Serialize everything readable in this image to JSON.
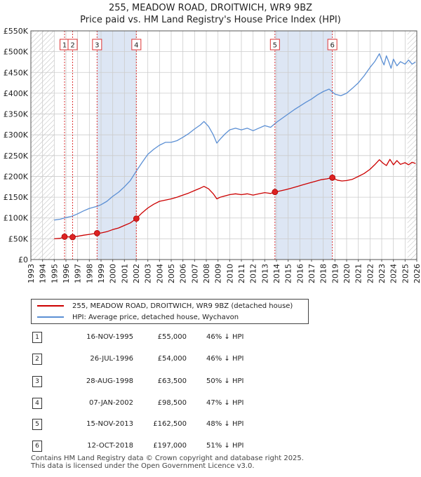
{
  "title": {
    "line1": "255, MEADOW ROAD, DROITWICH, WR9 9BZ",
    "line2": "Price paid vs. HM Land Registry's House Price Index (HPI)"
  },
  "colors": {
    "property": "#cc0000",
    "hpi": "#5b8fd4",
    "band": "#dde6f4",
    "grid": "#cccccc",
    "marker": "#dd2222"
  },
  "chart_data": {
    "type": "line",
    "xlim": [
      1993,
      2026
    ],
    "ylim": [
      0,
      550000
    ],
    "y_tick_labels": [
      {
        "v": 0,
        "label": "£0"
      },
      {
        "v": 50000,
        "label": "£50K"
      },
      {
        "v": 100000,
        "label": "£100K"
      },
      {
        "v": 150000,
        "label": "£150K"
      },
      {
        "v": 200000,
        "label": "£200K"
      },
      {
        "v": 250000,
        "label": "£250K"
      },
      {
        "v": 300000,
        "label": "£300K"
      },
      {
        "v": 350000,
        "label": "£350K"
      },
      {
        "v": 400000,
        "label": "£400K"
      },
      {
        "v": 450000,
        "label": "£450K"
      },
      {
        "v": 500000,
        "label": "£500K"
      },
      {
        "v": 550000,
        "label": "£550K"
      }
    ],
    "x_tick_labels": [
      "1993",
      "1994",
      "1995",
      "1996",
      "1997",
      "1998",
      "1999",
      "2000",
      "2001",
      "2002",
      "2003",
      "2004",
      "2005",
      "2006",
      "2007",
      "2008",
      "2009",
      "2010",
      "2011",
      "2012",
      "2013",
      "2014",
      "2015",
      "2016",
      "2017",
      "2018",
      "2019",
      "2020",
      "2021",
      "2022",
      "2023",
      "2024",
      "2025",
      "2026"
    ],
    "hatched_before": 1995.0,
    "hatched_after": 2025.2,
    "shaded_bands": [
      [
        1998.66,
        2002.02
      ],
      [
        2013.87,
        2018.78
      ]
    ],
    "series": [
      {
        "name": "255, MEADOW ROAD, DROITWICH, WR9 9BZ (detached house)",
        "x": [
          1995.0,
          1995.5,
          1995.88,
          1996.2,
          1996.57,
          1997.0,
          1997.5,
          1998.0,
          1998.66,
          1999.0,
          1999.5,
          2000.0,
          2000.5,
          2001.0,
          2001.5,
          2002.02,
          2002.5,
          2003.0,
          2003.5,
          2004.0,
          2004.5,
          2005.0,
          2005.5,
          2006.0,
          2006.5,
          2007.0,
          2007.5,
          2007.8,
          2008.2,
          2008.6,
          2008.9,
          2009.2,
          2009.6,
          2010.0,
          2010.5,
          2011.0,
          2011.5,
          2012.0,
          2012.5,
          2013.0,
          2013.5,
          2013.87,
          2014.3,
          2014.8,
          2015.3,
          2015.8,
          2016.3,
          2016.8,
          2017.3,
          2017.8,
          2018.3,
          2018.78,
          2019.2,
          2019.6,
          2020.0,
          2020.5,
          2021.0,
          2021.5,
          2022.0,
          2022.4,
          2022.8,
          2023.1,
          2023.4,
          2023.7,
          2024.0,
          2024.3,
          2024.6,
          2025.0,
          2025.3,
          2025.6,
          2025.9
        ],
        "values": [
          50000,
          51000,
          55000,
          54500,
          54000,
          56000,
          58500,
          60500,
          63500,
          64000,
          67000,
          72000,
          76000,
          82000,
          88000,
          98500,
          112000,
          124000,
          133000,
          140000,
          143000,
          146000,
          150000,
          155000,
          160000,
          166000,
          172000,
          176000,
          170000,
          158000,
          146000,
          150000,
          153000,
          156000,
          158000,
          156000,
          158000,
          155000,
          158000,
          161000,
          159000,
          162500,
          165000,
          168000,
          172000,
          176000,
          180000,
          184000,
          188000,
          192000,
          194000,
          197000,
          191000,
          189000,
          190000,
          193000,
          200000,
          207000,
          217000,
          228000,
          240000,
          232000,
          226000,
          241000,
          228000,
          238000,
          229000,
          233000,
          228000,
          234000,
          231000
        ]
      },
      {
        "name": "HPI: Average price, detached house, Wychavon",
        "x": [
          1995.0,
          1995.5,
          1996.0,
          1996.5,
          1997.0,
          1997.5,
          1998.0,
          1998.66,
          1999.0,
          1999.5,
          2000.0,
          2000.5,
          2001.0,
          2001.5,
          2002.0,
          2002.5,
          2003.0,
          2003.5,
          2004.0,
          2004.5,
          2005.0,
          2005.5,
          2006.0,
          2006.5,
          2007.0,
          2007.5,
          2007.8,
          2008.2,
          2008.6,
          2008.9,
          2009.2,
          2009.6,
          2010.0,
          2010.5,
          2011.0,
          2011.5,
          2012.0,
          2012.5,
          2013.0,
          2013.5,
          2014.0,
          2014.5,
          2015.0,
          2015.5,
          2016.0,
          2016.5,
          2017.0,
          2017.5,
          2018.0,
          2018.5,
          2019.0,
          2019.5,
          2020.0,
          2020.5,
          2021.0,
          2021.5,
          2022.0,
          2022.4,
          2022.8,
          2023.0,
          2023.2,
          2023.4,
          2023.6,
          2023.8,
          2024.0,
          2024.3,
          2024.6,
          2025.0,
          2025.3,
          2025.6,
          2025.9
        ],
        "values": [
          95000,
          97000,
          101000,
          104000,
          110000,
          117000,
          123000,
          128000,
          132000,
          140000,
          152000,
          162000,
          175000,
          190000,
          212000,
          233000,
          253000,
          265000,
          275000,
          282000,
          282000,
          286000,
          294000,
          303000,
          314000,
          324000,
          332000,
          320000,
          300000,
          280000,
          290000,
          302000,
          312000,
          316000,
          312000,
          316000,
          310000,
          316000,
          322000,
          318000,
          330000,
          340000,
          350000,
          360000,
          369000,
          378000,
          386000,
          396000,
          404000,
          410000,
          398000,
          394000,
          400000,
          412000,
          425000,
          442000,
          462000,
          476000,
          495000,
          480000,
          468000,
          490000,
          476000,
          460000,
          482000,
          466000,
          476000,
          470000,
          480000,
          470000,
          475000
        ]
      }
    ],
    "sales": [
      {
        "id": "1",
        "x": 1995.88,
        "v": 55000
      },
      {
        "id": "2",
        "x": 1996.57,
        "v": 54000
      },
      {
        "id": "3",
        "x": 1998.66,
        "v": 63500
      },
      {
        "id": "4",
        "x": 2002.02,
        "v": 98500
      },
      {
        "id": "5",
        "x": 2013.87,
        "v": 162500
      },
      {
        "id": "6",
        "x": 2018.78,
        "v": 197000
      }
    ]
  },
  "legend": {
    "property": "255, MEADOW ROAD, DROITWICH, WR9 9BZ (detached house)",
    "hpi": "HPI: Average price, detached house, Wychavon"
  },
  "sales_table": [
    {
      "num": "1",
      "date": "16-NOV-1995",
      "price": "£55,000",
      "hpi": "46% ↓ HPI"
    },
    {
      "num": "2",
      "date": "26-JUL-1996",
      "price": "£54,000",
      "hpi": "46% ↓ HPI"
    },
    {
      "num": "3",
      "date": "28-AUG-1998",
      "price": "£63,500",
      "hpi": "50% ↓ HPI"
    },
    {
      "num": "4",
      "date": "07-JAN-2002",
      "price": "£98,500",
      "hpi": "47% ↓ HPI"
    },
    {
      "num": "5",
      "date": "15-NOV-2013",
      "price": "£162,500",
      "hpi": "48% ↓ HPI"
    },
    {
      "num": "6",
      "date": "12-OCT-2018",
      "price": "£197,000",
      "hpi": "51% ↓ HPI"
    }
  ],
  "footer": {
    "line1": "Contains HM Land Registry data © Crown copyright and database right 2025.",
    "line2": "This data is licensed under the Open Government Licence v3.0."
  }
}
